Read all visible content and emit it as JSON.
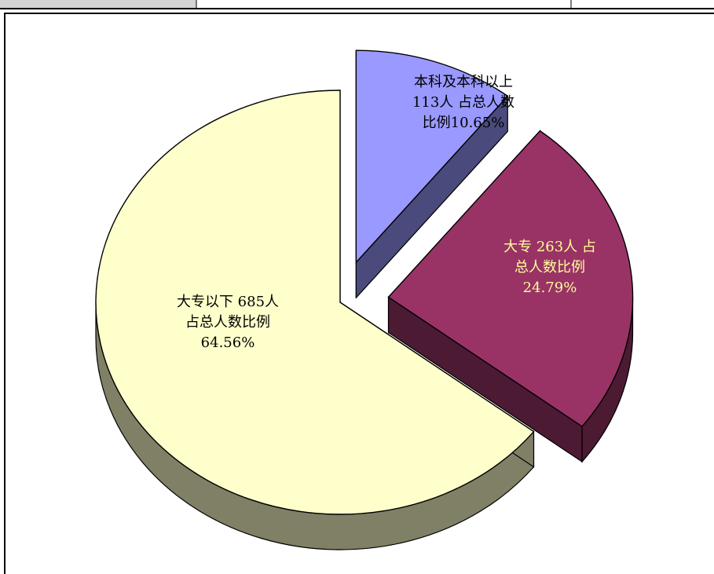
{
  "chart_data": {
    "type": "pie",
    "title": "",
    "slices": [
      {
        "category": "本科及本科以上",
        "value": 113,
        "percent": 10.65,
        "label_lines": [
          "本科及本科以上",
          "113人 占总人数",
          "比例10.65%"
        ],
        "top_color": "#9999FF",
        "side_color": "#4A4A7D",
        "label_color": "#000000"
      },
      {
        "category": "大专",
        "value": 263,
        "percent": 24.79,
        "label_lines": [
          "大专 263人 占",
          "总人数比例",
          "24.79%"
        ],
        "top_color": "#993366",
        "side_color": "#4D1A33",
        "label_color": "#FFFF99"
      },
      {
        "category": "大专以下",
        "value": 685,
        "percent": 64.56,
        "label_lines": [
          "大专以下 685人",
          "占总人数比例",
          "64.56%"
        ],
        "top_color": "#FFFFCC",
        "side_color": "#808066",
        "label_color": "#000000"
      }
    ]
  }
}
